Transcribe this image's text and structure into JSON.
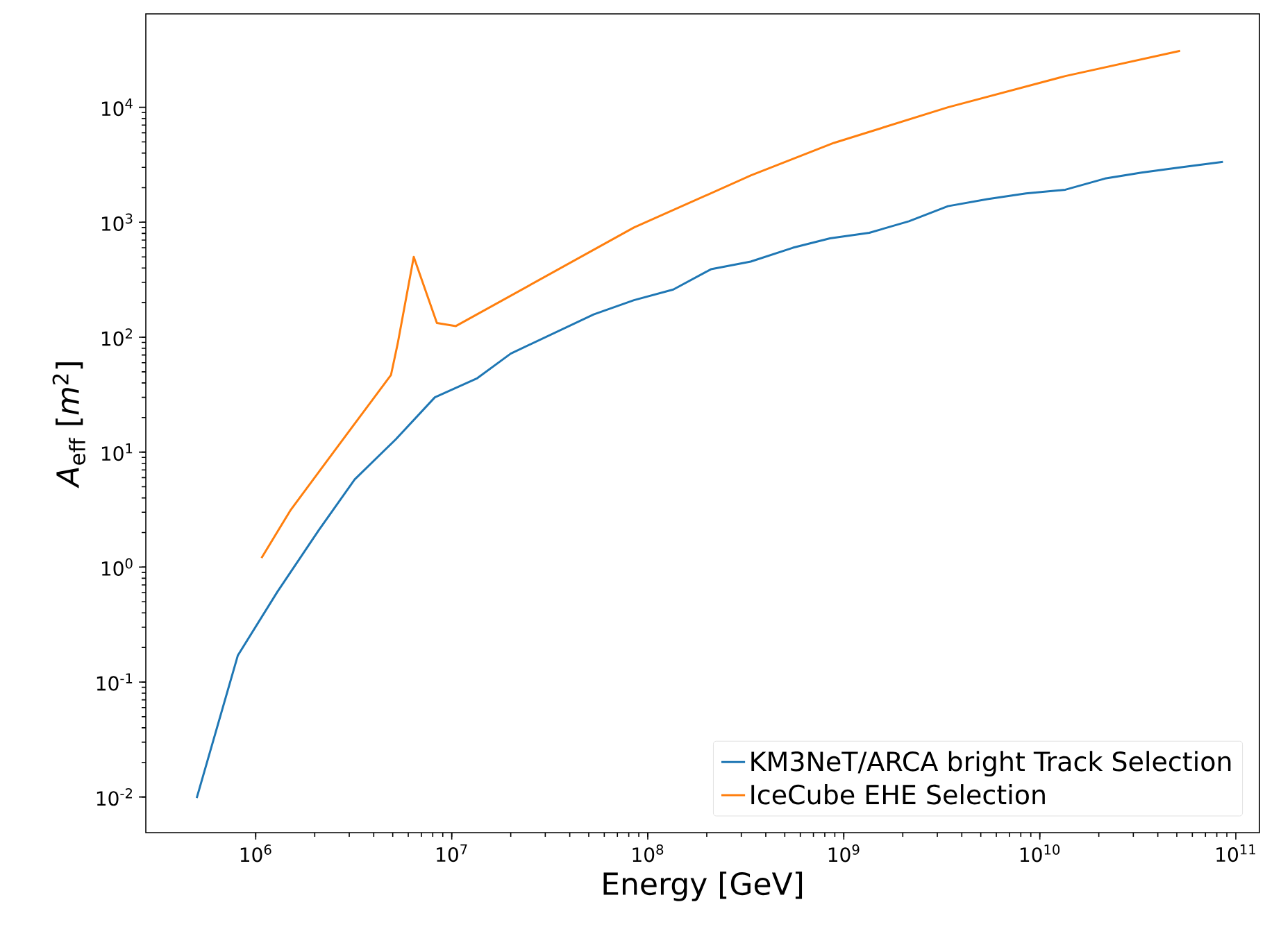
{
  "chart_data": {
    "type": "line",
    "xlabel": "Energy [GeV]",
    "ylabel": "*A*$_{eff}$ [*m*$^{2}$]",
    "log": "xy",
    "grid": false,
    "legend": "bottom right",
    "marker": "none",
    "line_style": "solid",
    "xlim": [
      275000,
      132000000000
    ],
    "ylim": [
      0.0049,
      65000
    ],
    "xticks": [
      {
        "value": 1000000,
        "label": "10$^{6}$"
      },
      {
        "value": 10000000,
        "label": "10$^{7}$"
      },
      {
        "value": 100000000,
        "label": "10$^{8}$"
      },
      {
        "value": 1000000000,
        "label": "10$^{9}$"
      },
      {
        "value": 10000000000,
        "label": "10$^{10}$"
      },
      {
        "value": 100000000000,
        "label": "10$^{11}$"
      }
    ],
    "yticks": [
      {
        "value": 0.01,
        "label": "10$^{-2}$"
      },
      {
        "value": 0.1,
        "label": "10$^{-1}$"
      },
      {
        "value": 1,
        "label": "10$^{0}$"
      },
      {
        "value": 10,
        "label": "10$^{1}$"
      },
      {
        "value": 100,
        "label": "10$^{2}$"
      },
      {
        "value": 1000,
        "label": "10$^{3}$"
      },
      {
        "value": 10000,
        "label": "10$^{4}$"
      }
    ],
    "series": [
      {
        "name": "KM3NeT/ARCA bright Track Selection",
        "color": "#1f77b4",
        "x": [
          500000,
          810000,
          1290000,
          2100000,
          3200000,
          5200000,
          8200000,
          13500000,
          20000000,
          53000000,
          85000000,
          135000000,
          210000000,
          335000000,
          550000000,
          850000000,
          1350000000,
          2150000000,
          3400000000,
          5400000000,
          8500000000,
          13500000000,
          21500000000,
          33000000000,
          52000000000,
          86000000000
        ],
        "values": [
          0.0098,
          0.17,
          0.61,
          2.1,
          5.8,
          13,
          30,
          44,
          72,
          158,
          210,
          260,
          390,
          455,
          600,
          725,
          810,
          1020,
          1380,
          1590,
          1780,
          1920,
          2400,
          2700,
          3000,
          3350
        ]
      },
      {
        "name": "IceCube EHE Selection",
        "color": "#ff7f0e",
        "x": [
          1070000,
          1500000,
          2200000,
          4900000,
          5300000,
          6400000,
          8400000,
          10500000,
          85000000,
          335000000,
          890000000,
          3400000000,
          13500000000,
          52000000000
        ],
        "values": [
          1.2,
          3.1,
          7.5,
          47,
          88,
          500,
          133,
          125,
          900,
          2550,
          4900,
          10000,
          18700,
          31000
        ]
      }
    ]
  }
}
